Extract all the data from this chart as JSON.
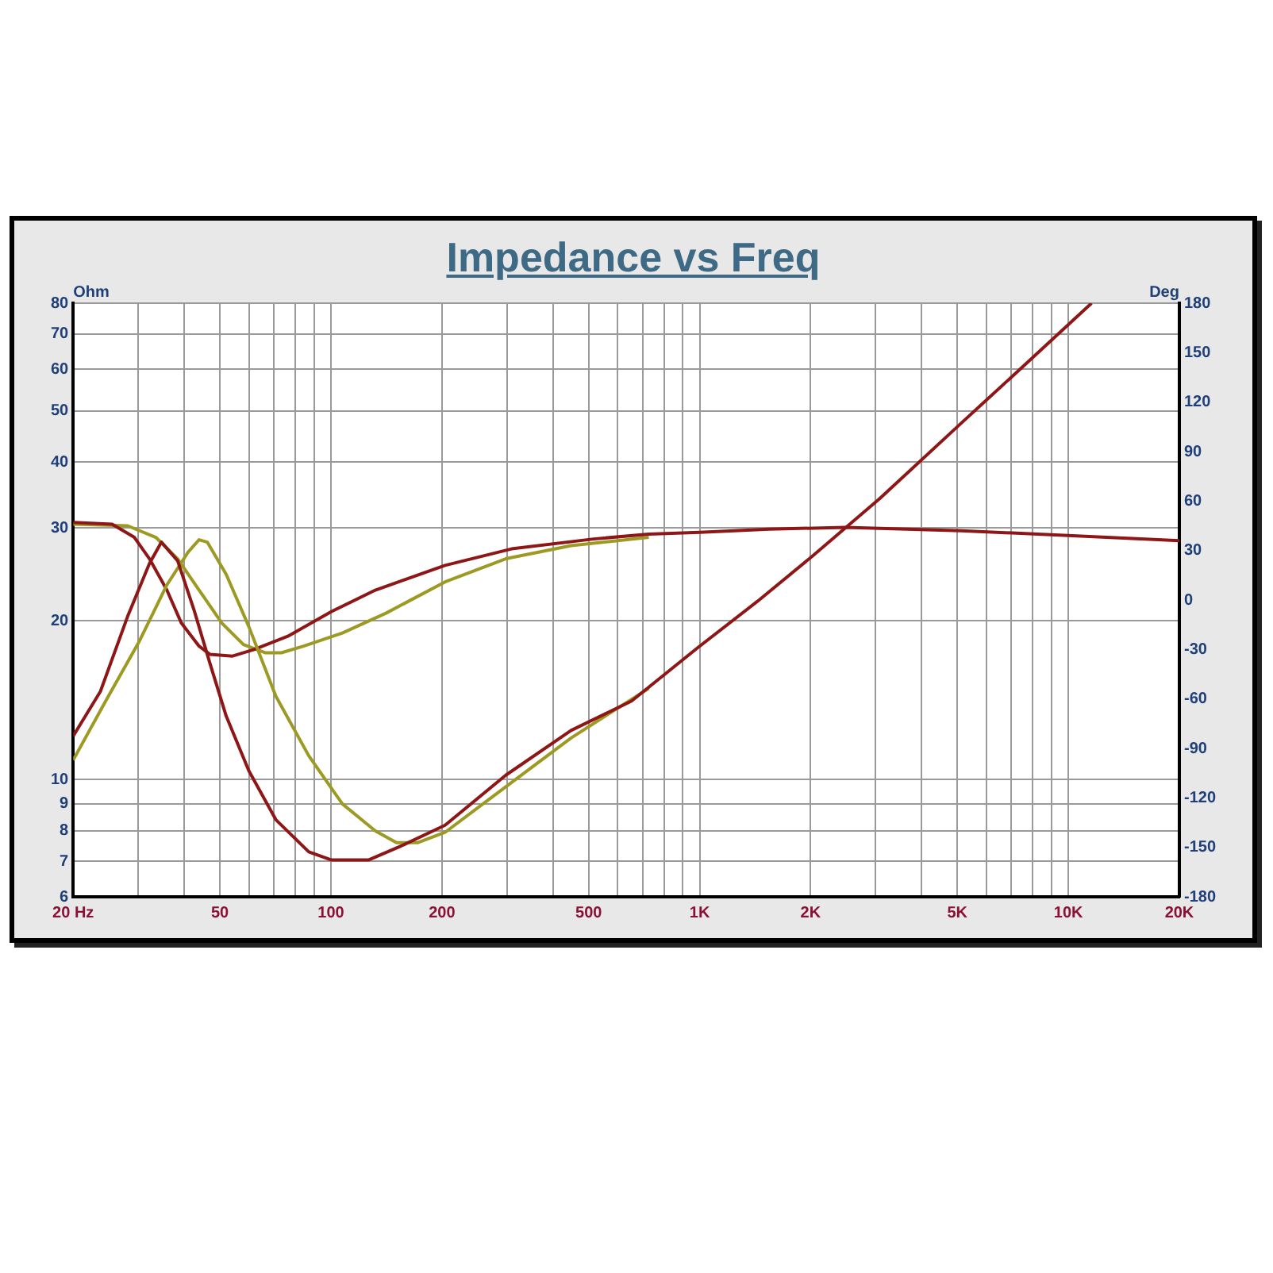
{
  "chart_data": {
    "type": "line",
    "title": "Impedance vs Freq",
    "ylabel": "Ohm",
    "y2label": "Deg",
    "log": "xy",
    "grid": true,
    "legend": false,
    "marker": "none",
    "line_style": "solid",
    "xlim": [
      20,
      20000
    ],
    "ylim": [
      6,
      80
    ],
    "y2lim": [
      -180,
      180
    ],
    "xticks": [
      {
        "value": 20,
        "label": "20 Hz"
      },
      {
        "value": 30,
        "label": null
      },
      {
        "value": 40,
        "label": null
      },
      50,
      {
        "value": 60,
        "label": null
      },
      {
        "value": 70,
        "label": null
      },
      {
        "value": 80,
        "label": null
      },
      {
        "value": 90,
        "label": null
      },
      100,
      200,
      {
        "value": 300,
        "label": null
      },
      {
        "value": 400,
        "label": null
      },
      500,
      {
        "value": 600,
        "label": null
      },
      {
        "value": 700,
        "label": null
      },
      {
        "value": 800,
        "label": null
      },
      {
        "value": 900,
        "label": null
      },
      {
        "value": 1000,
        "label": "1K"
      },
      {
        "value": 2000,
        "label": "2K"
      },
      {
        "value": 3000,
        "label": null
      },
      {
        "value": 4000,
        "label": null
      },
      {
        "value": 5000,
        "label": "5K"
      },
      {
        "value": 6000,
        "label": null
      },
      {
        "value": 7000,
        "label": null
      },
      {
        "value": 8000,
        "label": null
      },
      {
        "value": 9000,
        "label": null
      },
      {
        "value": 10000,
        "label": "10K"
      },
      {
        "value": 20000,
        "label": "20K"
      }
    ],
    "yticks": [
      6,
      7,
      8,
      9,
      10,
      20,
      30,
      40,
      50,
      60,
      70,
      80
    ],
    "y2ticks": [
      -180,
      -150,
      -120,
      -90,
      -60,
      -30,
      0,
      30,
      60,
      90,
      120,
      150,
      180
    ],
    "series": [
      {
        "color": "#8e1616",
        "x": [
          20,
          23.7,
          28.1,
          32.2,
          34.7,
          38.4,
          42.6,
          47,
          52,
          59.9,
          70.9,
          87.1,
          100,
          126.8,
          155.6,
          204,
          298,
          448,
          654,
          989,
          1437,
          2031,
          3078,
          5124,
          7730,
          11560
        ],
        "values": [
          12.1,
          14.7,
          20.4,
          25.7,
          28.2,
          26,
          20.9,
          16.6,
          13.2,
          10.4,
          8.4,
          7.3,
          7.05,
          7.05,
          7.5,
          8.2,
          10.2,
          12.4,
          14.1,
          17.8,
          21.8,
          26.6,
          34.1,
          47.4,
          61.7,
          80
        ]
      },
      {
        "color": "#9c9a22",
        "x": [
          20,
          24.5,
          30.1,
          35.9,
          41,
          43.9,
          46.2,
          52,
          59.9,
          70.9,
          87.1,
          107.4,
          132,
          150.6,
          172.3,
          204,
          298,
          448,
          728
        ],
        "values": [
          10.9,
          14.1,
          18.2,
          23.4,
          27,
          28.5,
          28.2,
          24.5,
          19.5,
          14.4,
          11.1,
          9,
          8,
          7.6,
          7.6,
          7.95,
          9.7,
          12,
          14.9
        ]
      },
      {
        "color": "#8e1616",
        "axis": "y2",
        "x": [
          20,
          25.5,
          29.3,
          32.2,
          35.9,
          39.3,
          43.9,
          47,
          54.1,
          61.9,
          76.4,
          100.4,
          132,
          204,
          309,
          516,
          728,
          1000,
          1542,
          2489,
          5124,
          10250,
          20000
        ],
        "values": [
          47,
          46,
          38,
          25,
          6,
          -14,
          -28,
          -33,
          -34,
          -30,
          -22,
          -7,
          6,
          21,
          31,
          37,
          40,
          41,
          43,
          44,
          42,
          39,
          36
        ]
      },
      {
        "color": "#9c9a22",
        "axis": "y2",
        "x": [
          20,
          28.1,
          33.5,
          38.4,
          43.9,
          50.6,
          57.9,
          66.3,
          73.4,
          84.3,
          107.4,
          141,
          204,
          298,
          448,
          728
        ],
        "values": [
          46,
          45,
          38,
          25,
          6,
          -14,
          -27,
          -32,
          -32,
          -28,
          -20,
          -8,
          11,
          25,
          33,
          38
        ]
      }
    ]
  }
}
